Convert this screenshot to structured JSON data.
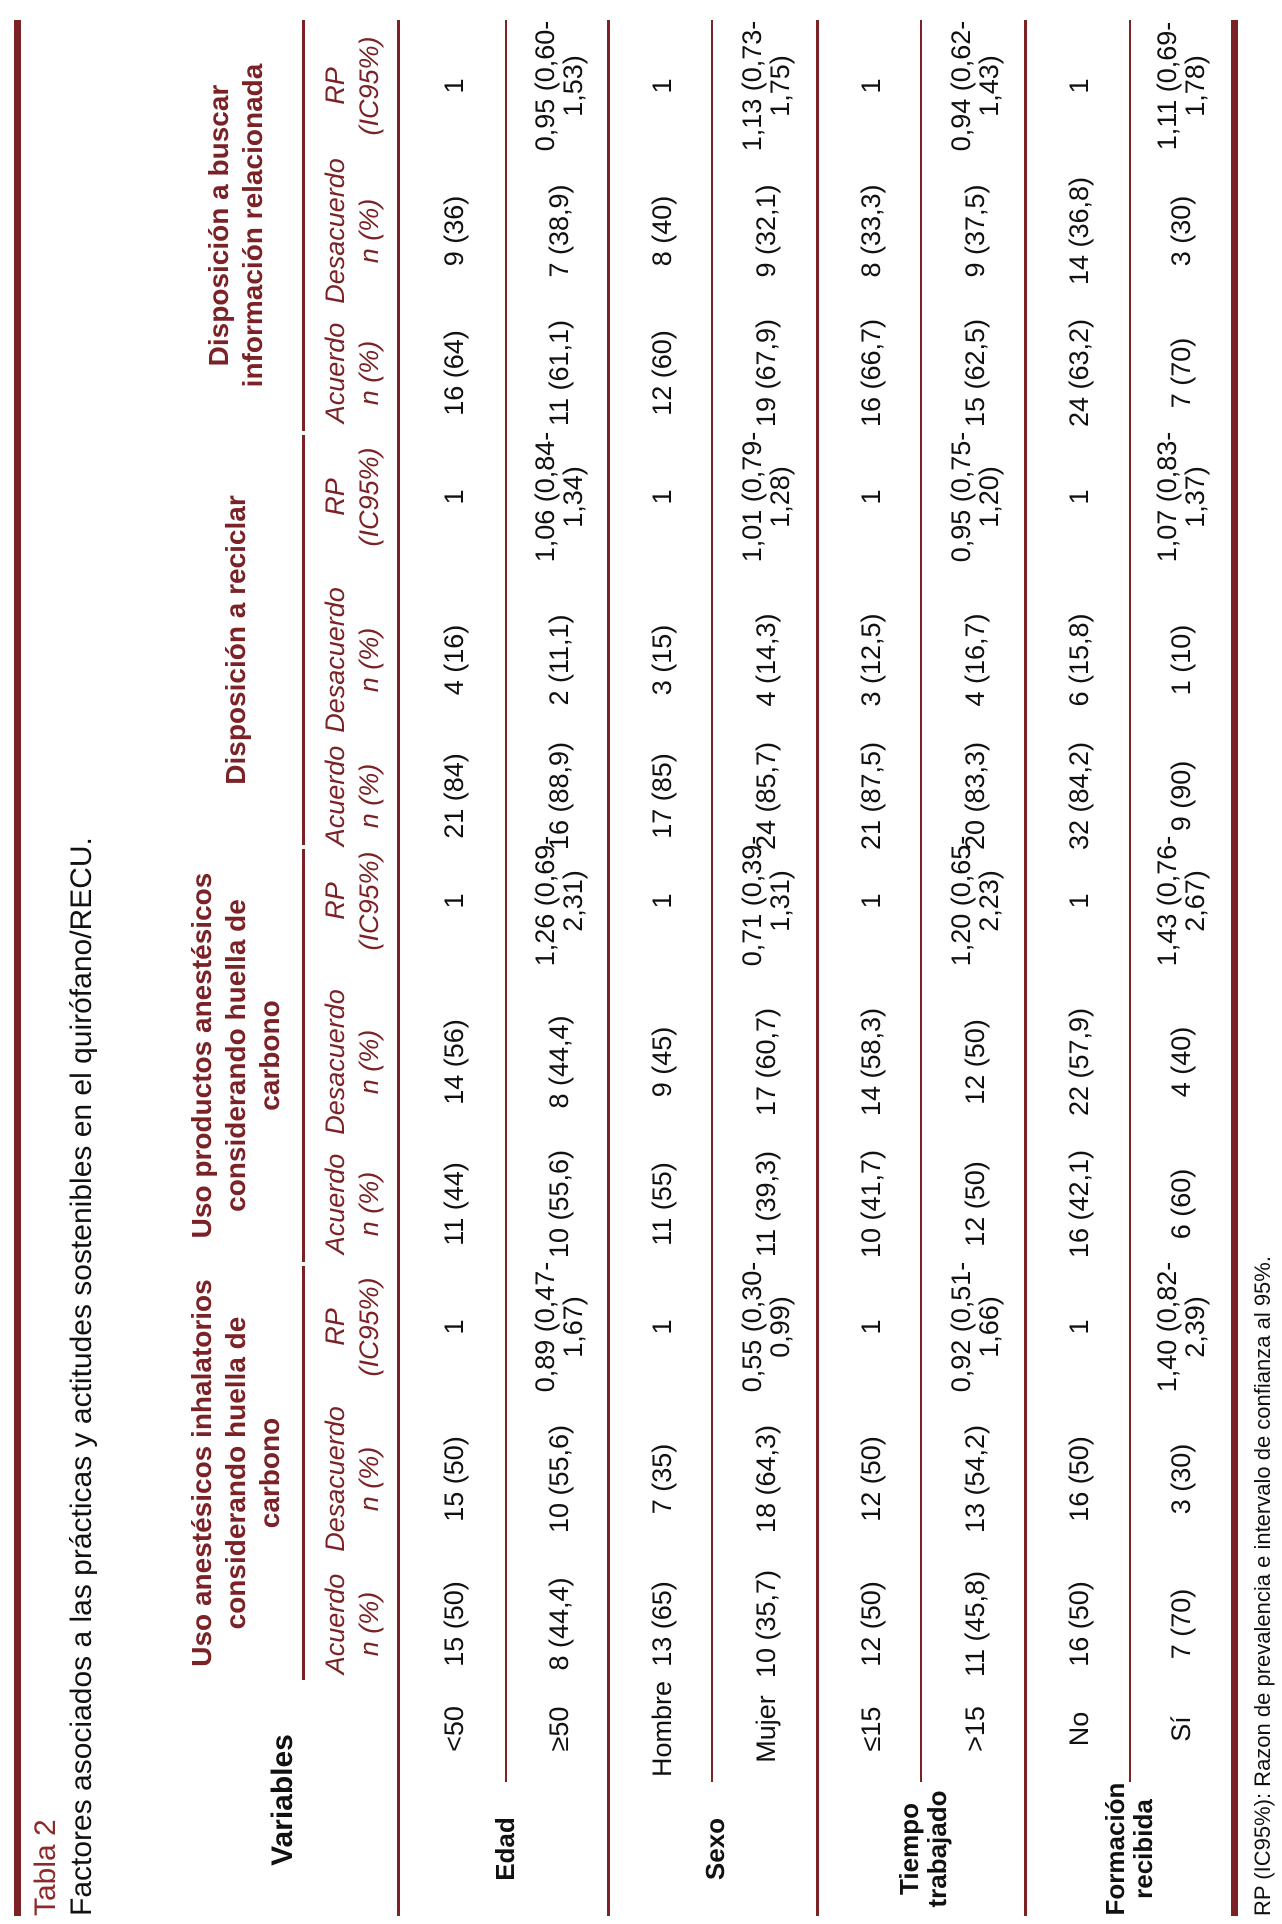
{
  "caption": {
    "label": "Tabla 2",
    "title": "Factores asociados a las prácticas y actitudes sostenibles en el quirófano/RECU."
  },
  "header": {
    "variables": "Variables",
    "groups": [
      "Uso anestésicos inhalatorios considerando huella de carbono",
      "Uso productos anestésicos considerando huella de carbono",
      "Disposición a reciclar",
      "Disposición a buscar información relacionada"
    ],
    "sub_headers": [
      {
        "line1": "Acuerdo",
        "line2": "n (%)"
      },
      {
        "line1": "Desacuerdo",
        "line2": "n (%)"
      },
      {
        "line1": "RP",
        "line2": "(IC95%)"
      }
    ]
  },
  "groups": [
    {
      "label": "Edad",
      "rows": [
        {
          "label": "<50",
          "values": [
            "15 (50)",
            "15 (50)",
            "1",
            "11 (44)",
            "14 (56)",
            "1",
            "21 (84)",
            "4 (16)",
            "1",
            "16 (64)",
            "9 (36)",
            "1"
          ]
        },
        {
          "label": "≥50",
          "values": [
            "8 (44,4)",
            "10 (55,6)",
            "0,89 (0,47-1,67)",
            "10 (55,6)",
            "8 (44,4)",
            "1,26 (0,69-2,31)",
            "16 (88,9)",
            "2 (11,1)",
            "1,06 (0,84-1,34)",
            "11 (61,1)",
            "7 (38,9)",
            "0,95 (0,60-1,53)"
          ]
        }
      ]
    },
    {
      "label": "Sexo",
      "rows": [
        {
          "label": "Hombre",
          "values": [
            "13 (65)",
            "7 (35)",
            "1",
            "11 (55)",
            "9 (45)",
            "1",
            "17 (85)",
            "3 (15)",
            "1",
            "12 (60)",
            "8 (40)",
            "1"
          ]
        },
        {
          "label": "Mujer",
          "values": [
            "10 (35,7)",
            "18 (64,3)",
            "0,55 (0,30-0,99)",
            "11 (39,3)",
            "17 (60,7)",
            "0,71 (0,39-1,31)",
            "24 (85,7)",
            "4 (14,3)",
            "1,01 (0,79-1,28)",
            "19 (67,9)",
            "9 (32,1)",
            "1,13 (0,73-1,75)"
          ]
        }
      ]
    },
    {
      "label": "Tiempo trabajado",
      "rows": [
        {
          "label": "≤15",
          "values": [
            "12 (50)",
            "12 (50)",
            "1",
            "10 (41,7)",
            "14 (58,3)",
            "1",
            "21 (87,5)",
            "3 (12,5)",
            "1",
            "16 (66,7)",
            "8 (33,3)",
            "1"
          ]
        },
        {
          "label": ">15",
          "values": [
            "11 (45,8)",
            "13 (54,2)",
            "0,92 (0,51-1,66)",
            "12 (50)",
            "12 (50)",
            "1,20 (0,65-2,23)",
            "20 (83,3)",
            "4 (16,7)",
            "0,95 (0,75-1,20)",
            "15 (62,5)",
            "9 (37,5)",
            "0,94 (0,62-1,43)"
          ]
        }
      ]
    },
    {
      "label": "Formación recibida",
      "rows": [
        {
          "label": "No",
          "values": [
            "16 (50)",
            "16 (50)",
            "1",
            "16 (42,1)",
            "22 (57,9)",
            "1",
            "32 (84,2)",
            "6 (15,8)",
            "1",
            "24 (63,2)",
            "14 (36,8)",
            "1"
          ]
        },
        {
          "label": "Sí",
          "values": [
            "7 (70)",
            "3 (30)",
            "1,40 (0,82-2,39)",
            "6 (60)",
            "4 (40)",
            "1,43 (0,76-2,67)",
            "9 (90)",
            "1 (10)",
            "1,07 (0,83-1,37)",
            "7 (70)",
            "3 (30)",
            "1,11 (0,69-1,78)"
          ]
        }
      ]
    }
  ],
  "footnote": "RP (IC95%): Razon de prevalencia e intervalo de confianza al 95%.",
  "colors": {
    "accent": "#7b2226",
    "text": "#111111"
  }
}
